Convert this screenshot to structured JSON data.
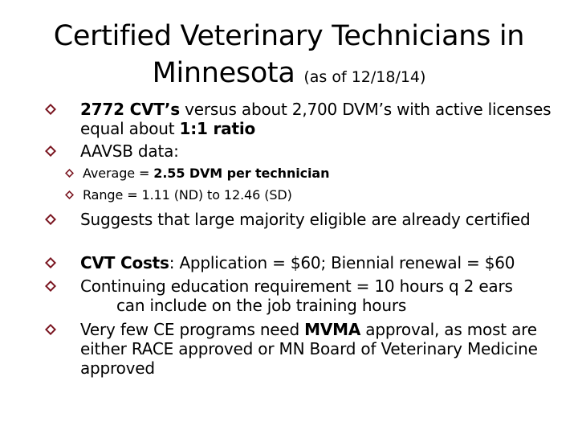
{
  "slide": {
    "title_line1": "Certified Veterinary Technicians in",
    "title_line2": "Minnesota",
    "title_note": "(as of 12/18/14)"
  },
  "bullets": {
    "b1": {
      "bold1": "2772 CVT’s",
      "text1": " versus  about 2,700 DVM’s with active licenses",
      "text2": "equal about ",
      "bold2": "1:1 ratio"
    },
    "b2": {
      "text": "AAVSB data:"
    },
    "s1": {
      "text": "Average = ",
      "bold": "2.55 DVM per technician"
    },
    "s2": {
      "text": "Range = 1.11 (ND) to 12.46 (SD)"
    },
    "b3": {
      "text": "Suggests that large majority eligible are already certified"
    },
    "b4": {
      "bold": "CVT Costs",
      "text": ": Application = $60; Biennial renewal = $60"
    },
    "b5": {
      "text1": "Continuing education requirement = 10 hours q 2 ears",
      "text2": "can include on the job training hours"
    },
    "b6": {
      "text1": "Very few CE programs need ",
      "bold": "MVMA",
      "text2": " approval, as most are",
      "text3": "either RACE approved or MN Board of Veterinary Medicine",
      "text4": "approved"
    }
  },
  "colors": {
    "bullet_marker": "#7a1520"
  },
  "icons": {
    "bullet": "diamond-quatrefoil-icon"
  }
}
